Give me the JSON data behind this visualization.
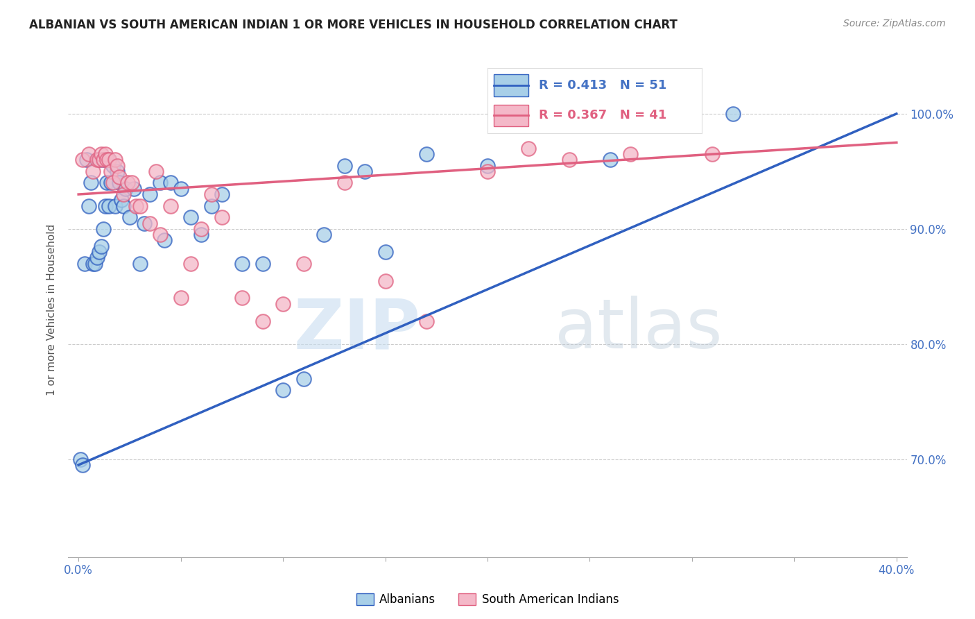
{
  "title": "ALBANIAN VS SOUTH AMERICAN INDIAN 1 OR MORE VEHICLES IN HOUSEHOLD CORRELATION CHART",
  "source": "Source: ZipAtlas.com",
  "ylabel": "1 or more Vehicles in Household",
  "y_ticks": [
    "70.0%",
    "80.0%",
    "90.0%",
    "100.0%"
  ],
  "y_tick_values": [
    0.7,
    0.8,
    0.9,
    1.0
  ],
  "x_ticks": [
    0.0,
    0.05,
    0.1,
    0.15,
    0.2,
    0.25,
    0.3,
    0.35,
    0.4
  ],
  "xlim": [
    -0.005,
    0.405
  ],
  "ylim": [
    0.615,
    1.045
  ],
  "legend_r_albanian": "R = 0.413",
  "legend_n_albanian": "N = 51",
  "legend_r_sai": "R = 0.367",
  "legend_n_sai": "N = 41",
  "color_albanian": "#a8cfe8",
  "color_sai": "#f4b8c8",
  "color_albanian_line": "#3060c0",
  "color_sai_line": "#e06080",
  "watermark_zip": "ZIP",
  "watermark_atlas": "atlas",
  "albanian_x": [
    0.001,
    0.002,
    0.003,
    0.004,
    0.005,
    0.006,
    0.007,
    0.008,
    0.009,
    0.01,
    0.01,
    0.011,
    0.012,
    0.012,
    0.013,
    0.014,
    0.015,
    0.015,
    0.016,
    0.017,
    0.018,
    0.019,
    0.02,
    0.021,
    0.022,
    0.023,
    0.025,
    0.027,
    0.03,
    0.032,
    0.035,
    0.04,
    0.042,
    0.045,
    0.05,
    0.055,
    0.06,
    0.065,
    0.07,
    0.08,
    0.09,
    0.1,
    0.11,
    0.12,
    0.13,
    0.14,
    0.15,
    0.17,
    0.2,
    0.26,
    0.32
  ],
  "albanian_y": [
    0.7,
    0.695,
    0.87,
    0.96,
    0.92,
    0.94,
    0.87,
    0.87,
    0.875,
    0.88,
    0.96,
    0.885,
    0.9,
    0.96,
    0.92,
    0.94,
    0.92,
    0.96,
    0.94,
    0.955,
    0.92,
    0.95,
    0.94,
    0.925,
    0.92,
    0.935,
    0.91,
    0.935,
    0.87,
    0.905,
    0.93,
    0.94,
    0.89,
    0.94,
    0.935,
    0.91,
    0.895,
    0.92,
    0.93,
    0.87,
    0.87,
    0.76,
    0.77,
    0.895,
    0.955,
    0.95,
    0.88,
    0.965,
    0.955,
    0.96,
    1.0
  ],
  "sai_x": [
    0.002,
    0.005,
    0.007,
    0.009,
    0.01,
    0.011,
    0.012,
    0.013,
    0.014,
    0.015,
    0.016,
    0.017,
    0.018,
    0.019,
    0.02,
    0.022,
    0.024,
    0.026,
    0.028,
    0.03,
    0.035,
    0.038,
    0.04,
    0.045,
    0.05,
    0.055,
    0.06,
    0.065,
    0.07,
    0.08,
    0.09,
    0.1,
    0.11,
    0.13,
    0.15,
    0.17,
    0.2,
    0.22,
    0.24,
    0.27,
    0.31
  ],
  "sai_y": [
    0.96,
    0.965,
    0.95,
    0.96,
    0.96,
    0.965,
    0.96,
    0.965,
    0.96,
    0.96,
    0.95,
    0.94,
    0.96,
    0.955,
    0.945,
    0.93,
    0.94,
    0.94,
    0.92,
    0.92,
    0.905,
    0.95,
    0.895,
    0.92,
    0.84,
    0.87,
    0.9,
    0.93,
    0.91,
    0.84,
    0.82,
    0.835,
    0.87,
    0.94,
    0.855,
    0.82,
    0.95,
    0.97,
    0.96,
    0.965,
    0.965
  ]
}
